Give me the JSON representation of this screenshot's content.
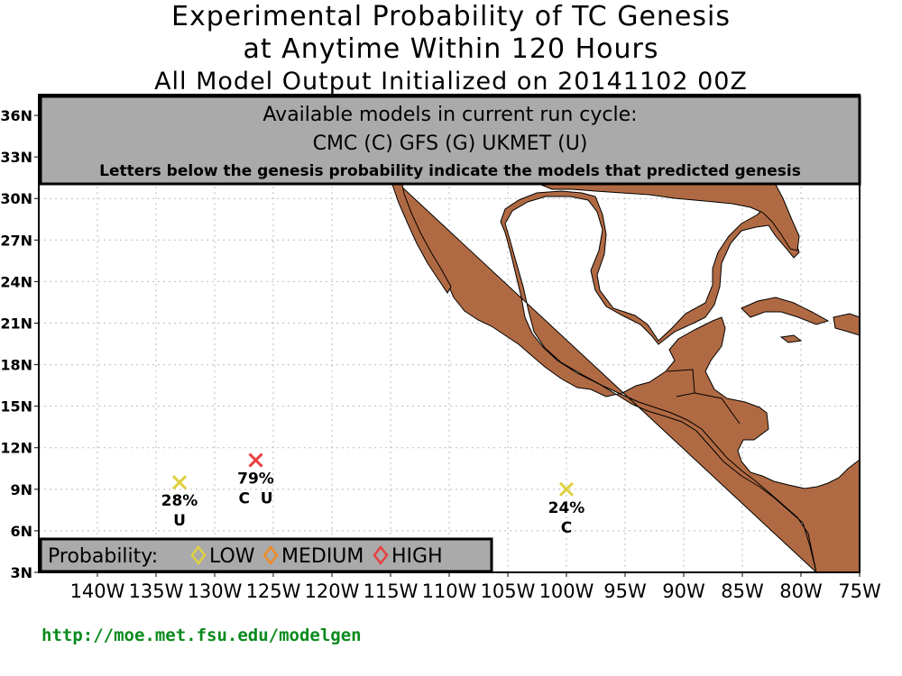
{
  "title": {
    "line1": "Experimental Probability of TC Genesis",
    "line2": "at Anytime Within 120 Hours",
    "line3": "All Model Output Initialized on 20141102 00Z"
  },
  "info_box": {
    "heading": "Available models in current run cycle:",
    "models": "CMC (C) GFS (G)  UKMET (U)",
    "note": "Letters below the genesis probability indicate the models that predicted genesis"
  },
  "lat_ticks": [
    "3N",
    "6N",
    "9N",
    "12N",
    "15N",
    "18N",
    "21N",
    "24N",
    "27N",
    "30N",
    "33N",
    "36N"
  ],
  "lon_ticks": [
    "140W",
    "135W",
    "130W",
    "125W",
    "120W",
    "115W",
    "110W",
    "105W",
    "100W",
    "95W",
    "90W",
    "85W",
    "80W",
    "75W"
  ],
  "legend": {
    "label": "Probability:",
    "items": [
      {
        "name": "LOW",
        "color": "#e0d040"
      },
      {
        "name": "MEDIUM",
        "color": "#f08a28"
      },
      {
        "name": "HIGH",
        "color": "#e84040"
      }
    ]
  },
  "markers": [
    {
      "lon": -133,
      "lat": 9.5,
      "prob": "28%",
      "models": "U",
      "color": "#e0d040"
    },
    {
      "lon": -126.5,
      "lat": 11.1,
      "prob": "79%",
      "models": "C  U",
      "color": "#e84040"
    },
    {
      "lon": -100,
      "lat": 9.0,
      "prob": "24%",
      "models": "C",
      "color": "#e0d040"
    }
  ],
  "land_color": "#b06a43",
  "footer_url": "http://moe.met.fsu.edu/modelgen"
}
